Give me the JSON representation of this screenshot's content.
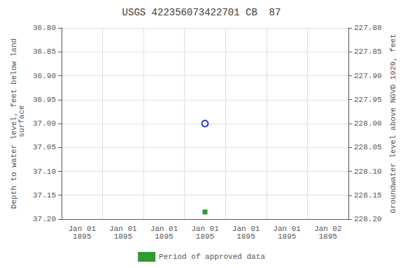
{
  "chart_data": {
    "type": "scatter",
    "title": "USGS 422356073422701 CB  87",
    "ylabel": "Depth to water level, feet below land\n surface",
    "y2label": "Groundwater level above NGVD 1929, feet",
    "categories": [
      "Jan 01\n1895",
      "Jan 01\n1895",
      "Jan 01\n1895",
      "Jan 01\n1895",
      "Jan 01\n1895",
      "Jan 01\n1895",
      "Jan 02\n1895"
    ],
    "series": [
      {
        "color": "#0000cc",
        "marker": "open_circle",
        "values": [
          null,
          null,
          null,
          37.0,
          null,
          null,
          null
        ]
      },
      {
        "name": "Period of approved data",
        "color": "#008000",
        "marker": "square",
        "values": [
          null,
          null,
          null,
          37.185,
          null,
          null,
          null
        ]
      }
    ],
    "ylim": [
      37.2,
      36.8
    ],
    "yticks": [
      {
        "value": 36.8,
        "label": "36.80"
      },
      {
        "value": 36.85,
        "label": "36.85"
      },
      {
        "value": 36.9,
        "label": "36.90"
      },
      {
        "value": 36.95,
        "label": "36.95"
      },
      {
        "value": 37.0,
        "label": "37.00"
      },
      {
        "value": 37.05,
        "label": "37.05"
      },
      {
        "value": 37.1,
        "label": "37.10"
      },
      {
        "value": 37.15,
        "label": "37.15"
      },
      {
        "value": 37.2,
        "label": "37.20"
      }
    ],
    "y2lim": [
      228.2,
      227.8
    ],
    "y2ticks": [
      {
        "value": 227.8,
        "label": "227.80"
      },
      {
        "value": 227.85,
        "label": "227.85"
      },
      {
        "value": 227.9,
        "label": "227.90"
      },
      {
        "value": 227.95,
        "label": "227.95"
      },
      {
        "value": 228.0,
        "label": "228.00"
      },
      {
        "value": 228.05,
        "label": "228.05"
      },
      {
        "value": 228.1,
        "label": "228.10"
      },
      {
        "value": 228.15,
        "label": "228.15"
      },
      {
        "value": 228.2,
        "label": "228.20"
      }
    ],
    "grid": true,
    "legend": "bottom"
  }
}
